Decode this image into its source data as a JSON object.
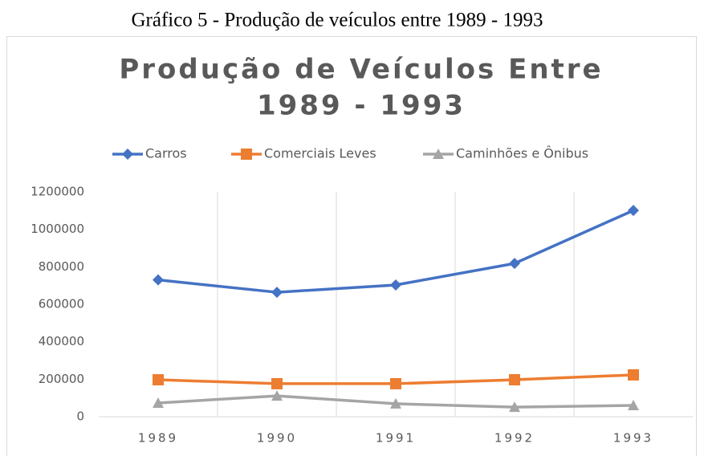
{
  "caption": "Gráfico 5 - Produção de veículos entre 1989 - 1993",
  "chart_data": {
    "type": "line",
    "title": [
      "Produção de Veículos Entre",
      "1989  - 1993"
    ],
    "categories": [
      "1989",
      "1990",
      "1991",
      "1992",
      "1993"
    ],
    "series": [
      {
        "name": "Carros",
        "color": "#4472c4",
        "marker": "diamond",
        "values": [
          730000,
          664000,
          703000,
          818000,
          1101000
        ]
      },
      {
        "name": "Comerciais Leves",
        "color": "#ed7d31",
        "marker": "square",
        "values": [
          197000,
          176000,
          176000,
          197000,
          223000
        ]
      },
      {
        "name": "Caminhões e Ônibus",
        "color": "#a5a5a5",
        "marker": "triangle",
        "values": [
          73000,
          111000,
          69000,
          51000,
          60000
        ]
      }
    ],
    "ylim": [
      0,
      1200000
    ],
    "yticks": [
      0,
      200000,
      400000,
      600000,
      800000,
      1000000,
      1200000
    ],
    "grid": "vertical",
    "legend": "top"
  }
}
